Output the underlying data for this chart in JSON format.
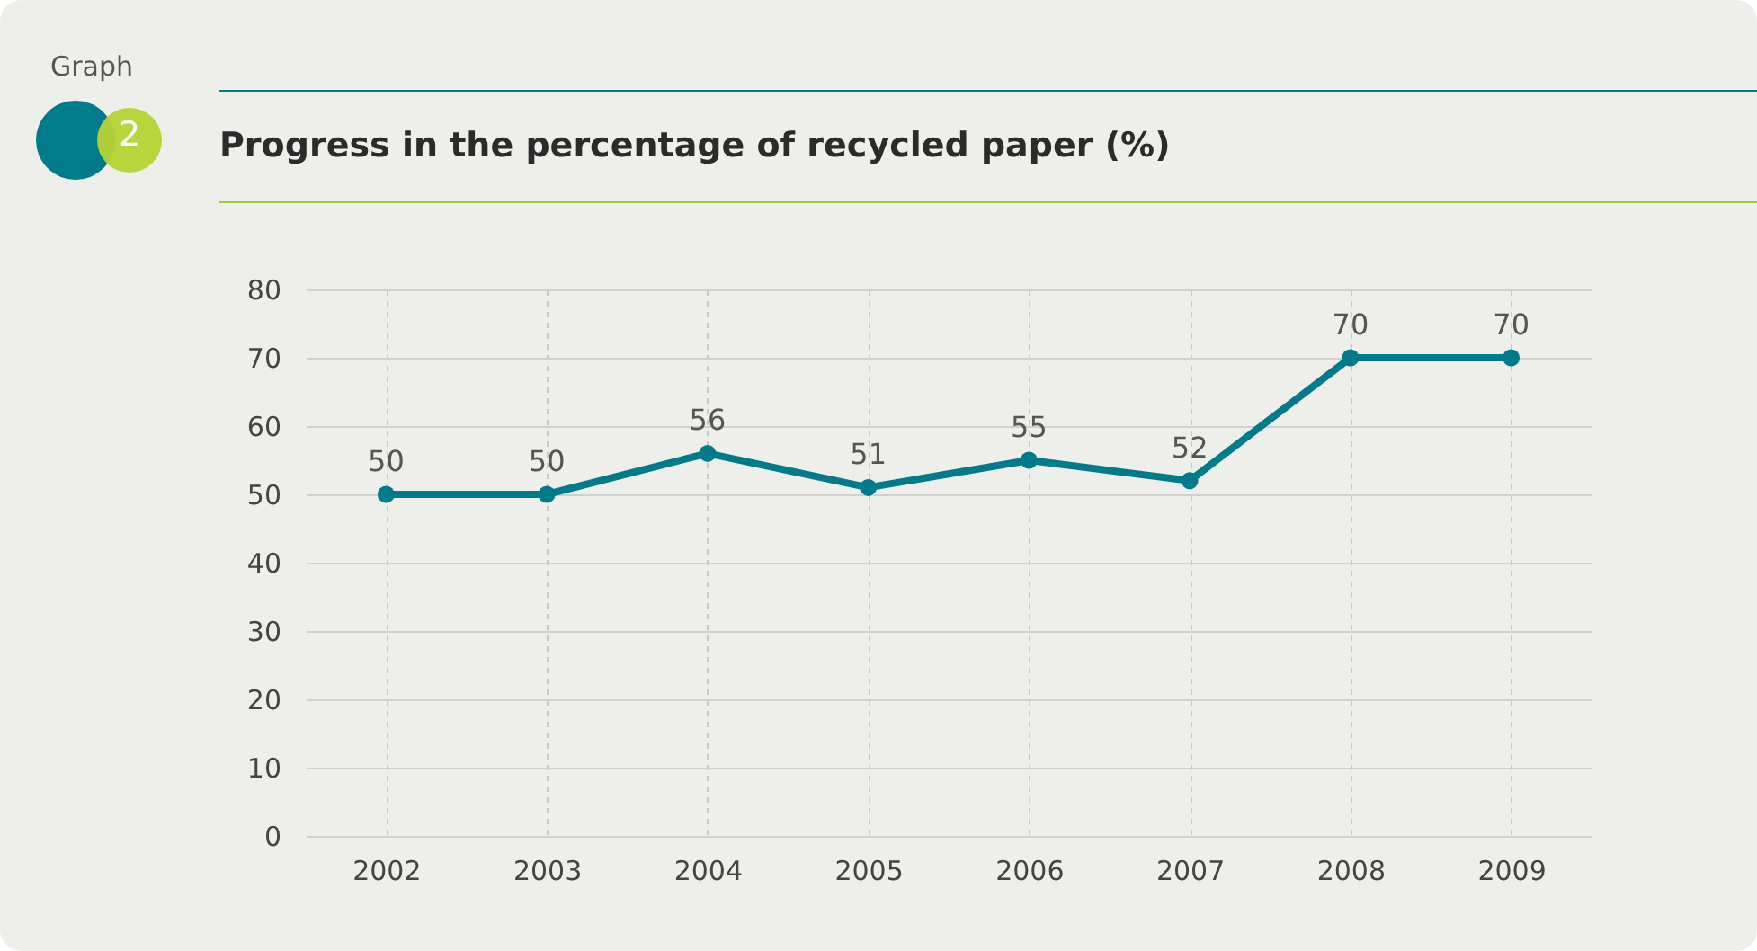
{
  "chart_data": {
    "type": "line",
    "title": "Progress in the percentage of recycled paper (%)",
    "annotations": [
      "Graph",
      "2"
    ],
    "categories": [
      "2002",
      "2003",
      "2004",
      "2005",
      "2006",
      "2007",
      "2008",
      "2009"
    ],
    "series": [
      {
        "color": "#007b89",
        "values": [
          50,
          50,
          56,
          51,
          55,
          52,
          70,
          70
        ]
      }
    ],
    "ylim": [
      0,
      80
    ],
    "yticks": [
      0,
      10,
      20,
      30,
      40,
      50,
      60,
      70,
      80
    ],
    "grid": true,
    "marker": "circle",
    "data_labels": true,
    "line_style": "solid"
  }
}
